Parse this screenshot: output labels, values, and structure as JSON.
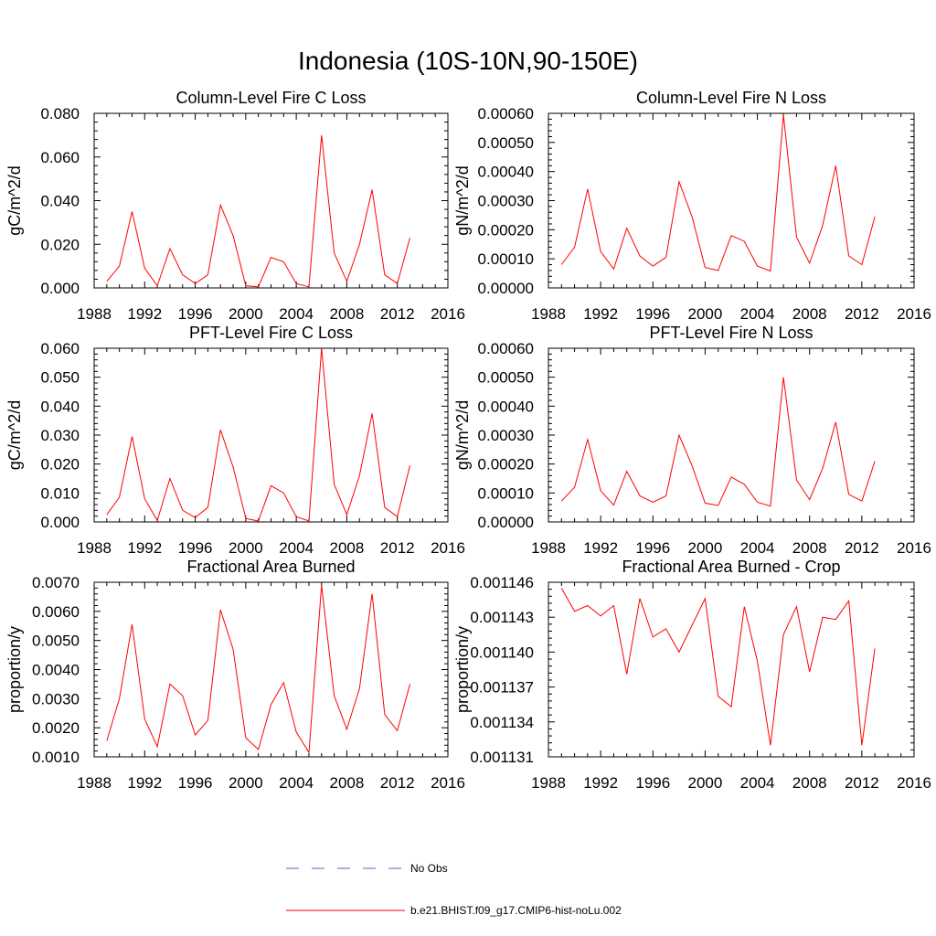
{
  "title": "Indonesia (10S-10N,90-150E)",
  "colors": {
    "model": "#ff0000",
    "obs": "#5566bb",
    "frame": "#000000"
  },
  "legend": [
    {
      "label": "No Obs",
      "style": "dashed",
      "color": "#5566bb"
    },
    {
      "label": "b.e21.BHIST.f09_g17.CMIP6-hist-noLu.002",
      "style": "solid",
      "color": "#ff0000"
    }
  ],
  "chart_data": [
    {
      "type": "line",
      "title": "Column-Level Fire C Loss",
      "ylabel": "gC/m^2/d",
      "xlim": [
        1988,
        2016
      ],
      "xticks": [
        "1988",
        "1992",
        "1996",
        "2000",
        "2004",
        "2008",
        "2012",
        "2016"
      ],
      "ylim": [
        0,
        0.08
      ],
      "yticks": [
        "0.000",
        "0.020",
        "0.040",
        "0.060",
        "0.080"
      ],
      "x": [
        1989,
        1990,
        1991,
        1992,
        1993,
        1994,
        1995,
        1996,
        1997,
        1998,
        1999,
        2000,
        2001,
        2002,
        2003,
        2004,
        2005,
        2006,
        2007,
        2008,
        2009,
        2010,
        2011,
        2012,
        2013
      ],
      "series": [
        {
          "values": [
            0.003,
            0.01,
            0.035,
            0.009,
            0.001,
            0.018,
            0.006,
            0.002,
            0.006,
            0.038,
            0.024,
            0.001,
            0.0005,
            0.014,
            0.012,
            0.002,
            0.0005,
            0.07,
            0.016,
            0.003,
            0.02,
            0.045,
            0.006,
            0.002,
            0.023
          ]
        }
      ]
    },
    {
      "type": "line",
      "title": "Column-Level Fire N Loss",
      "ylabel": "gN/m^2/d",
      "xlim": [
        1988,
        2016
      ],
      "xticks": [
        "1988",
        "1992",
        "1996",
        "2000",
        "2004",
        "2008",
        "2012",
        "2016"
      ],
      "ylim": [
        0,
        0.0006
      ],
      "yticks": [
        "0.00000",
        "0.00010",
        "0.00020",
        "0.00030",
        "0.00040",
        "0.00050",
        "0.00060"
      ],
      "x": [
        1989,
        1990,
        1991,
        1992,
        1993,
        1994,
        1995,
        1996,
        1997,
        1998,
        1999,
        2000,
        2001,
        2002,
        2003,
        2004,
        2005,
        2006,
        2007,
        2008,
        2009,
        2010,
        2011,
        2012,
        2013
      ],
      "series": [
        {
          "values": [
            8e-05,
            0.00014,
            0.00034,
            0.000125,
            6.5e-05,
            0.000205,
            0.00011,
            7.5e-05,
            0.000105,
            0.000365,
            0.000245,
            7e-05,
            6e-05,
            0.00018,
            0.00016,
            7.5e-05,
            5.8e-05,
            0.000595,
            0.000175,
            8.5e-05,
            0.000215,
            0.00042,
            0.00011,
            8e-05,
            0.000245
          ]
        }
      ]
    },
    {
      "type": "line",
      "title": "PFT-Level Fire C Loss",
      "ylabel": "gC/m^2/d",
      "xlim": [
        1988,
        2016
      ],
      "xticks": [
        "1988",
        "1992",
        "1996",
        "2000",
        "2004",
        "2008",
        "2012",
        "2016"
      ],
      "ylim": [
        0,
        0.06
      ],
      "yticks": [
        "0.000",
        "0.010",
        "0.020",
        "0.030",
        "0.040",
        "0.050",
        "0.060"
      ],
      "x": [
        1989,
        1990,
        1991,
        1992,
        1993,
        1994,
        1995,
        1996,
        1997,
        1998,
        1999,
        2000,
        2001,
        2002,
        2003,
        2004,
        2005,
        2006,
        2007,
        2008,
        2009,
        2010,
        2011,
        2012,
        2013
      ],
      "series": [
        {
          "values": [
            0.0025,
            0.0085,
            0.0295,
            0.008,
            0.0005,
            0.015,
            0.004,
            0.0015,
            0.005,
            0.0318,
            0.019,
            0.0012,
            0.0003,
            0.0125,
            0.01,
            0.0018,
            0.0003,
            0.06,
            0.013,
            0.0025,
            0.016,
            0.0375,
            0.005,
            0.0018,
            0.0195
          ]
        }
      ]
    },
    {
      "type": "line",
      "title": "PFT-Level Fire N Loss",
      "ylabel": "gN/m^2/d",
      "xlim": [
        1988,
        2016
      ],
      "xticks": [
        "1988",
        "1992",
        "1996",
        "2000",
        "2004",
        "2008",
        "2012",
        "2016"
      ],
      "ylim": [
        0,
        0.0006
      ],
      "yticks": [
        "0.00000",
        "0.00010",
        "0.00020",
        "0.00030",
        "0.00040",
        "0.00050",
        "0.00060"
      ],
      "x": [
        1989,
        1990,
        1991,
        1992,
        1993,
        1994,
        1995,
        1996,
        1997,
        1998,
        1999,
        2000,
        2001,
        2002,
        2003,
        2004,
        2005,
        2006,
        2007,
        2008,
        2009,
        2010,
        2011,
        2012,
        2013
      ],
      "series": [
        {
          "values": [
            7.2e-05,
            0.00012,
            0.000285,
            0.000108,
            5.8e-05,
            0.000175,
            9e-05,
            6.8e-05,
            9e-05,
            0.0003,
            0.000195,
            6.5e-05,
            5.7e-05,
            0.000155,
            0.00013,
            6.8e-05,
            5.5e-05,
            0.0005,
            0.000145,
            7.7e-05,
            0.000185,
            0.000345,
            9.5e-05,
            7.2e-05,
            0.00021
          ]
        }
      ]
    },
    {
      "type": "line",
      "title": "Fractional Area Burned",
      "ylabel": "proportion/y",
      "xlim": [
        1988,
        2016
      ],
      "xticks": [
        "1988",
        "1992",
        "1996",
        "2000",
        "2004",
        "2008",
        "2012",
        "2016"
      ],
      "ylim": [
        0.001,
        0.007
      ],
      "yticks": [
        "0.0010",
        "0.0020",
        "0.0030",
        "0.0040",
        "0.0050",
        "0.0060",
        "0.0070"
      ],
      "x": [
        1989,
        1990,
        1991,
        1992,
        1993,
        1994,
        1995,
        1996,
        1997,
        1998,
        1999,
        2000,
        2001,
        2002,
        2003,
        2004,
        2005,
        2006,
        2007,
        2008,
        2009,
        2010,
        2011,
        2012,
        2013
      ],
      "series": [
        {
          "values": [
            0.00155,
            0.003,
            0.00555,
            0.0023,
            0.00135,
            0.0035,
            0.0031,
            0.00175,
            0.00225,
            0.00605,
            0.0047,
            0.00165,
            0.00125,
            0.0028,
            0.00355,
            0.00185,
            0.00115,
            0.0069,
            0.0031,
            0.00195,
            0.00335,
            0.0066,
            0.00245,
            0.0019,
            0.0035
          ]
        }
      ]
    },
    {
      "type": "line",
      "title": "Fractional Area Burned - Crop",
      "ylabel": "proportion/y",
      "xlim": [
        1988,
        2016
      ],
      "xticks": [
        "1988",
        "1992",
        "1996",
        "2000",
        "2004",
        "2008",
        "2012",
        "2016"
      ],
      "ylim": [
        0.001131,
        0.001146
      ],
      "yticks": [
        "0.001131",
        "0.001134",
        "0.001137",
        "0.001140",
        "0.001143",
        "0.001146"
      ],
      "x": [
        1989,
        1990,
        1991,
        1992,
        1993,
        1994,
        1995,
        1996,
        1997,
        1998,
        1999,
        2000,
        2001,
        2002,
        2003,
        2004,
        2005,
        2006,
        2007,
        2008,
        2009,
        2010,
        2011,
        2012,
        2013
      ],
      "series": [
        {
          "values": [
            0.0011455,
            0.0011435,
            0.001144,
            0.0011431,
            0.001144,
            0.0011381,
            0.0011446,
            0.0011413,
            0.001142,
            0.00114,
            0.0011423,
            0.0011446,
            0.0011362,
            0.0011353,
            0.0011439,
            0.0011392,
            0.001132,
            0.0011415,
            0.0011439,
            0.0011383,
            0.001143,
            0.0011428,
            0.0011444,
            0.001132,
            0.0011403
          ]
        }
      ]
    }
  ]
}
